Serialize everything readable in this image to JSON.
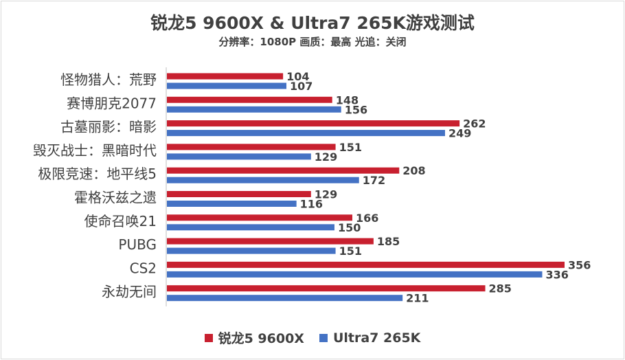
{
  "chart_data": {
    "type": "bar",
    "orientation": "horizontal",
    "title": "锐龙5 9600X & Ultra7 265K游戏测试",
    "subtitle": "分辨率：1080P 画质：最高 光追：关闭",
    "categories": [
      "怪物猎人：荒野",
      "赛博朋克2077",
      "古墓丽影：暗影",
      "毁灭战士：黑暗时代",
      "极限竞速：地平线5",
      "霍格沃兹之遗",
      "使命召唤21",
      "PUBG",
      "CS2",
      "永劫无间"
    ],
    "series": [
      {
        "name": "锐龙5 9600X",
        "color": "#c8202f",
        "values": [
          104,
          148,
          262,
          151,
          208,
          129,
          166,
          185,
          356,
          285
        ]
      },
      {
        "name": "Ultra7 265K",
        "color": "#4472c4",
        "values": [
          107,
          156,
          249,
          129,
          172,
          116,
          150,
          151,
          336,
          211
        ]
      }
    ],
    "xlim": [
      0,
      356
    ],
    "grid": false,
    "legend": "bottom",
    "data_labels": true
  }
}
